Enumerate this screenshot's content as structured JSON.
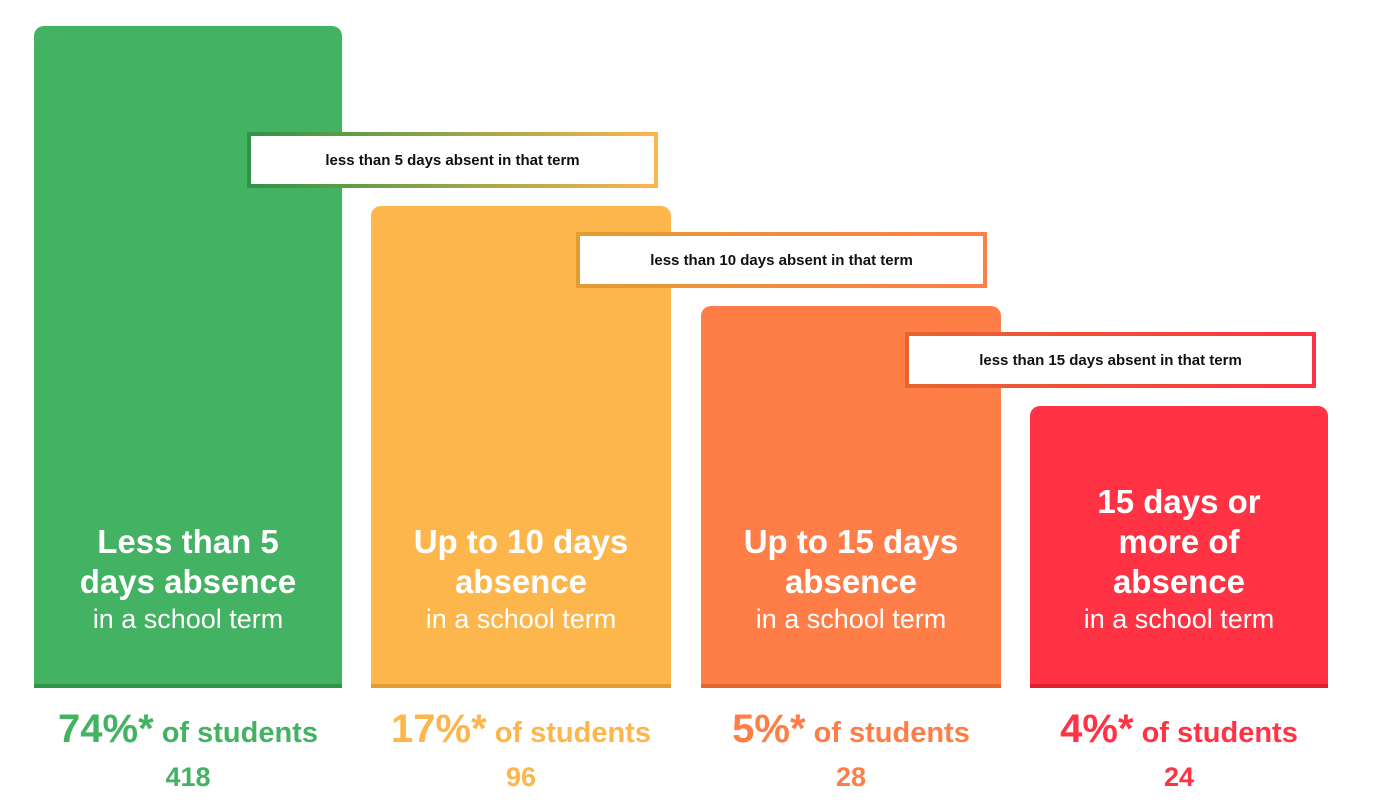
{
  "chart_data": {
    "type": "bar",
    "categories": [
      "Less than 5 days absence",
      "Up to 10 days absence",
      "Up to 15 days absence",
      "15 days or more of absence"
    ],
    "series": [
      {
        "values": [
          74,
          17,
          5,
          4
        ]
      }
    ],
    "counts": [
      418,
      96,
      28,
      24
    ],
    "bars": [
      {
        "title": "Less than 5 days absence",
        "subtitle": "in a school term",
        "percent_label": "74%*",
        "of_label": "of students",
        "count_label": "418",
        "color": "#43b262",
        "edge": "#2e9448"
      },
      {
        "title": "Up to 10 days absence",
        "subtitle": "in a school term",
        "percent_label": "17%*",
        "of_label": "of students",
        "count_label": "96",
        "color": "#fdb64b",
        "edge": "#e29d30"
      },
      {
        "title": "Up to 15 days absence",
        "subtitle": "in a school term",
        "percent_label": "5%*",
        "of_label": "of students",
        "count_label": "28",
        "color": "#ff7d47",
        "edge": "#e6652f"
      },
      {
        "title": "15 days or more of absence",
        "subtitle": "in a school term",
        "percent_label": "4%*",
        "of_label": "of students",
        "count_label": "24",
        "color": "#ff3344",
        "edge": "#e01f30"
      }
    ],
    "callouts": [
      {
        "text": "less than 5 days absent in that term",
        "from_color": "#2e9448",
        "to_color": "#fdb64b"
      },
      {
        "text": "less than 10 days absent in that term",
        "from_color": "#e29d30",
        "to_color": "#ff7d47"
      },
      {
        "text": "less than 15 days absent in that term",
        "from_color": "#e6652f",
        "to_color": "#ff3344"
      }
    ]
  }
}
